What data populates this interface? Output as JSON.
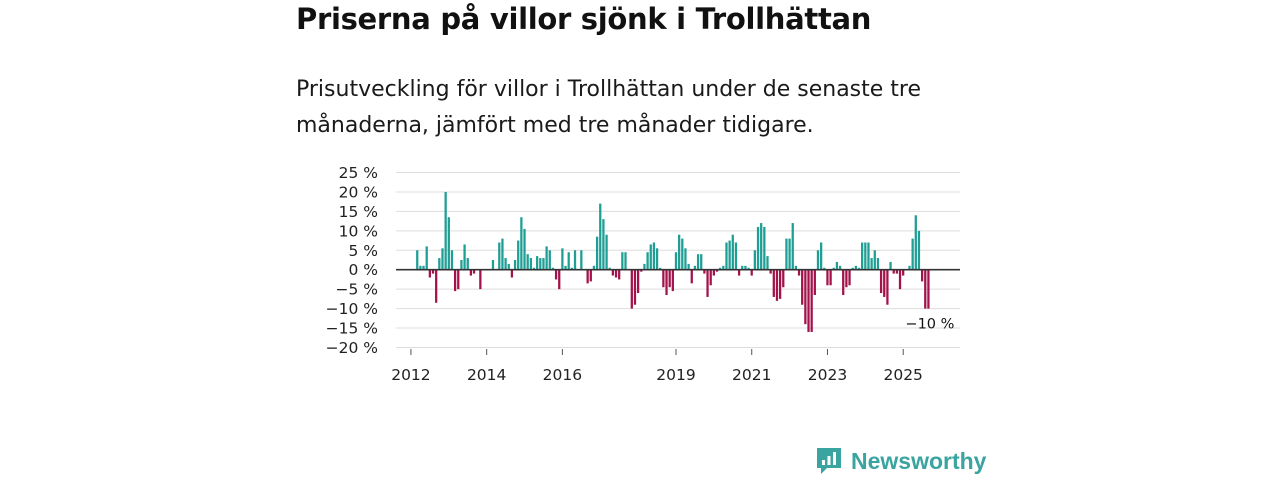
{
  "header": {
    "title": "Priserna på villor sjönk i Trollhättan",
    "subtitle": "Prisutveckling för villor i Trollhättan under de senaste tre månaderna, jämfört med tre månader tidigare."
  },
  "brand": {
    "name": "Newsworthy",
    "icon": "newsworthy-logo-icon",
    "color": "#3aa4a0"
  },
  "colors": {
    "positive": "#1e9e94",
    "negative": "#a3124a",
    "grid": "#dddddd",
    "zero_line": "#333333"
  },
  "chart_data": {
    "type": "bar",
    "title": "Priserna på villor sjönk i Trollhättan",
    "subtitle": "Prisutveckling för villor i Trollhättan under de senaste tre månaderna, jämfört med tre månader tidigare.",
    "xlabel": "",
    "ylabel": "",
    "ylim": [
      -20,
      25
    ],
    "y_ticks": [
      25,
      20,
      15,
      10,
      5,
      0,
      -5,
      -10,
      -15,
      -20
    ],
    "y_tick_labels": [
      "25 %",
      "20 %",
      "15 %",
      "10 %",
      "5 %",
      "0 %",
      "−5 %",
      "−10 %",
      "−15 %",
      "−20 %"
    ],
    "x_ticks": [
      2012,
      2014,
      2016,
      2019,
      2021,
      2023,
      2025
    ],
    "x_tick_labels": [
      "2012",
      "2014",
      "2016",
      "2019",
      "2021",
      "2023",
      "2025"
    ],
    "x_range": [
      2011.5,
      2026.5
    ],
    "grid": true,
    "x_unit": "monthly, starting January 2012",
    "start": 2012.0,
    "step": 0.08333,
    "values": [
      0,
      0,
      5,
      1,
      1,
      6,
      -2,
      -1,
      -8.5,
      3,
      5.5,
      20,
      13.5,
      5,
      -5.5,
      -5,
      2.5,
      6.5,
      3,
      -1.5,
      -1,
      0,
      -5,
      0,
      0,
      0,
      2.5,
      0,
      7,
      8,
      3,
      1.5,
      -2,
      2.5,
      7.5,
      13.5,
      10.5,
      4,
      3,
      0.5,
      3.5,
      3,
      3,
      6,
      5,
      0.5,
      -2.5,
      -5,
      5.5,
      1,
      4.5,
      0.5,
      5,
      0,
      5,
      0,
      -3.5,
      -3,
      1,
      8.5,
      17,
      13,
      9,
      0.5,
      -1.5,
      -2,
      -2.5,
      4.5,
      4.5,
      0,
      -10,
      -9,
      -6,
      -0.5,
      1.5,
      4.5,
      6.5,
      7,
      5.5,
      0.5,
      -4.5,
      -6.5,
      -4.5,
      -5.5,
      4.5,
      9,
      8,
      5.5,
      1.5,
      -3.5,
      1,
      4,
      4,
      -1,
      -7,
      -4,
      -1.5,
      -0.5,
      0.5,
      1,
      7,
      7.5,
      9,
      7,
      -1.5,
      1,
      1,
      0.5,
      -1.5,
      5,
      11,
      12,
      11,
      3.5,
      -1,
      -7,
      -8,
      -7.5,
      -4.5,
      8,
      8,
      12,
      1,
      -1.5,
      -9,
      -14,
      -16,
      -16,
      -6.5,
      5,
      7,
      0.5,
      -4,
      -4,
      0.5,
      2,
      1,
      -6.5,
      -4.5,
      -4,
      0.5,
      1,
      0.5,
      7,
      7,
      7,
      3,
      5,
      3,
      -6,
      -7,
      -9,
      2,
      -1,
      -1,
      -5,
      -1.5,
      0,
      1,
      8,
      14,
      10,
      -3,
      -10,
      -10
    ],
    "annotation": {
      "label": "−10 %",
      "value": -10,
      "at": "last bar"
    }
  }
}
